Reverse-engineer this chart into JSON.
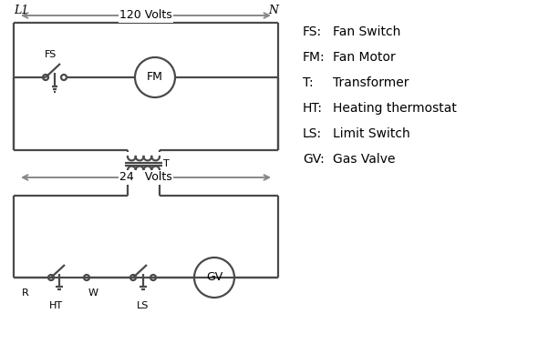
{
  "bg_color": "#ffffff",
  "line_color": "#4a4a4a",
  "arrow_color": "#888888",
  "text_color": "#000000",
  "legend_items": [
    [
      "FS:",
      "Fan Switch"
    ],
    [
      "FM:",
      "Fan Motor"
    ],
    [
      "T:",
      "Transformer"
    ],
    [
      "HT:",
      "Heating thermostat"
    ],
    [
      "LS:",
      "Limit Switch"
    ],
    [
      "GV:",
      "Gas Valve"
    ]
  ],
  "volts_120_label": "120 Volts",
  "volts_24_label": "24   Volts",
  "L1_label": "L1",
  "N_label": "N",
  "T_label": "T",
  "R_label": "R",
  "W_label": "W",
  "FS_label": "FS",
  "FM_label": "FM",
  "HT_label": "HT",
  "LS_label": "LS",
  "GV_label": "GV"
}
